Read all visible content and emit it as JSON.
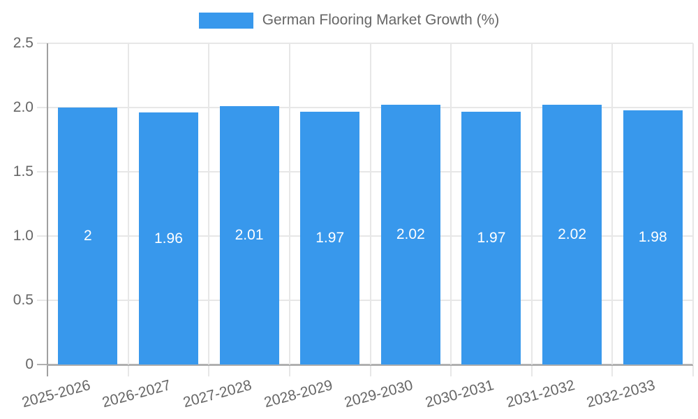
{
  "chart_data": {
    "type": "bar",
    "title": "German Flooring Market Growth (%)",
    "series_name": "German Flooring Market Growth (%)",
    "categories": [
      "2025-2026",
      "2026-2027",
      "2027-2028",
      "2028-2029",
      "2029-2030",
      "2030-2031",
      "2031-2032",
      "2032-2033"
    ],
    "values": [
      2,
      1.96,
      2.01,
      1.97,
      2.02,
      1.97,
      2.02,
      1.98
    ],
    "value_labels": [
      "2",
      "1.96",
      "2.01",
      "1.97",
      "2.02",
      "1.97",
      "2.02",
      "1.98"
    ],
    "xlabel": "",
    "ylabel": "",
    "ylim": [
      0,
      2.5
    ],
    "y_ticks": [
      0,
      0.5,
      1,
      1.5,
      2,
      2.5
    ],
    "y_tick_labels": [
      "0",
      "0.5",
      "1.0",
      "1.5",
      "2.0",
      "2.5"
    ],
    "grid": true,
    "legend_position": "top",
    "colors": {
      "bar": "#3898EC",
      "bar_label": "#FFFFFF",
      "grid": "#E7E7E7",
      "axis_zero_x": "#A0A0A0",
      "axis_zero_y": "#B0B0B0",
      "tick_text": "#666666",
      "legend_text": "#666666",
      "background": "#FFFFFF"
    }
  }
}
